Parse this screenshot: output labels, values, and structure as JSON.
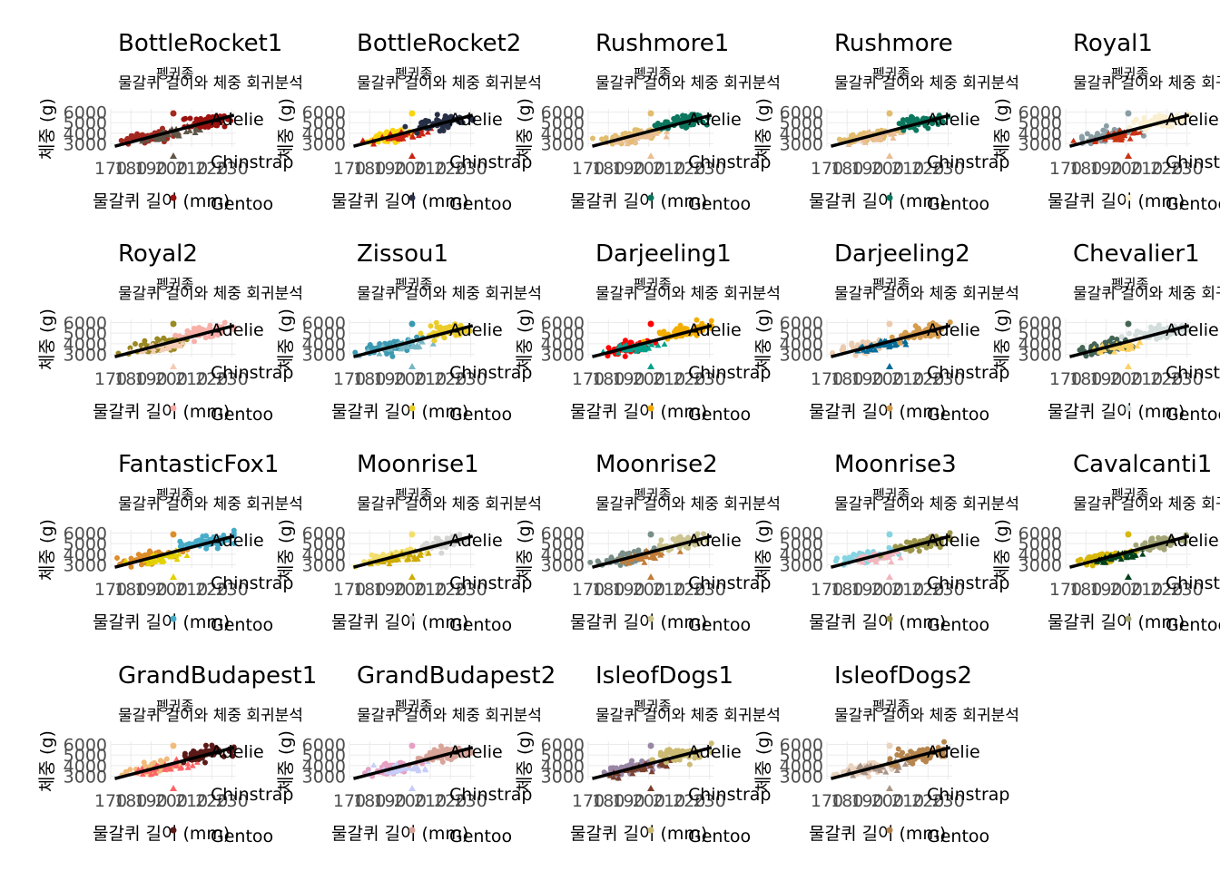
{
  "figure": {
    "subtitle": "물갈퀴 길이와 체중 회귀분석",
    "xlabel": "물갈퀴 길이 (mm)",
    "ylabel": "체중 (g)",
    "legend_title": "펭귄종",
    "legend_items": [
      "Adelie",
      "Chinstrap",
      "Gentoo"
    ]
  },
  "chart_data": {
    "type": "scatter",
    "title_per_panel": true,
    "xlim": [
      170,
      232
    ],
    "ylim": [
      2700,
      6300
    ],
    "x_ticks": [
      170,
      180,
      190,
      200,
      210,
      220,
      230
    ],
    "y_ticks": [
      3000,
      4000,
      5000,
      6000
    ],
    "regression_line": {
      "color": "#000000",
      "slope": 49.7,
      "intercept": -5780
    },
    "species_clusters": [
      {
        "name": "Adelie",
        "x_mean": 190,
        "x_sd": 6.5,
        "y_mean": 3700,
        "y_sd": 460,
        "n": 60
      },
      {
        "name": "Chinstrap",
        "x_mean": 196,
        "x_sd": 7,
        "y_mean": 3730,
        "y_sd": 380,
        "n": 34
      },
      {
        "name": "Gentoo",
        "x_mean": 217,
        "x_sd": 6.5,
        "y_mean": 5080,
        "y_sd": 500,
        "n": 60
      }
    ],
    "panels": [
      {
        "title": "BottleRocket1",
        "colors": [
          "#A42820",
          "#5F5647",
          "#9B110E"
        ]
      },
      {
        "title": "BottleRocket2",
        "colors": [
          "#FAD510",
          "#CB2314",
          "#273046"
        ]
      },
      {
        "title": "Rushmore1",
        "colors": [
          "#E1BD6D",
          "#EABE94",
          "#0B775E"
        ]
      },
      {
        "title": "Rushmore",
        "colors": [
          "#E1BD6D",
          "#EABE94",
          "#0B775E"
        ]
      },
      {
        "title": "Royal1",
        "colors": [
          "#899DA4",
          "#C93312",
          "#FAEFD1"
        ]
      },
      {
        "title": "Royal2",
        "colors": [
          "#9A8822",
          "#F5CDB4",
          "#F8AFA8"
        ]
      },
      {
        "title": "Zissou1",
        "colors": [
          "#3B9AB2",
          "#78B7C5",
          "#EBCC2A"
        ]
      },
      {
        "title": "Darjeeling1",
        "colors": [
          "#FF0000",
          "#00A08A",
          "#F2AD00"
        ]
      },
      {
        "title": "Darjeeling2",
        "colors": [
          "#ECCBAE",
          "#046C9A",
          "#D69C4E"
        ]
      },
      {
        "title": "Chevalier1",
        "colors": [
          "#446455",
          "#FDD262",
          "#D3DDDC"
        ]
      },
      {
        "title": "FantasticFox1",
        "colors": [
          "#DD8D29",
          "#E2D200",
          "#46ACC8"
        ]
      },
      {
        "title": "Moonrise1",
        "colors": [
          "#F3DF6C",
          "#CEAB07",
          "#D5D5D3"
        ]
      },
      {
        "title": "Moonrise2",
        "colors": [
          "#798E87",
          "#C27D38",
          "#CCC591"
        ]
      },
      {
        "title": "Moonrise3",
        "colors": [
          "#85D4E3",
          "#F4B5BD",
          "#9C964A"
        ]
      },
      {
        "title": "Cavalcanti1",
        "colors": [
          "#D8B70A",
          "#02401B",
          "#A2A475"
        ]
      },
      {
        "title": "GrandBudapest1",
        "colors": [
          "#F1BB7B",
          "#FD6467",
          "#5B1A18"
        ]
      },
      {
        "title": "GrandBudapest2",
        "colors": [
          "#E6A0C4",
          "#C6CDF7",
          "#D8A499"
        ]
      },
      {
        "title": "IsleofDogs1",
        "colors": [
          "#9986A5",
          "#79402E",
          "#CCBA72"
        ]
      },
      {
        "title": "IsleofDogs2",
        "colors": [
          "#EAD3BF",
          "#AA9486",
          "#B6854D"
        ]
      }
    ]
  }
}
